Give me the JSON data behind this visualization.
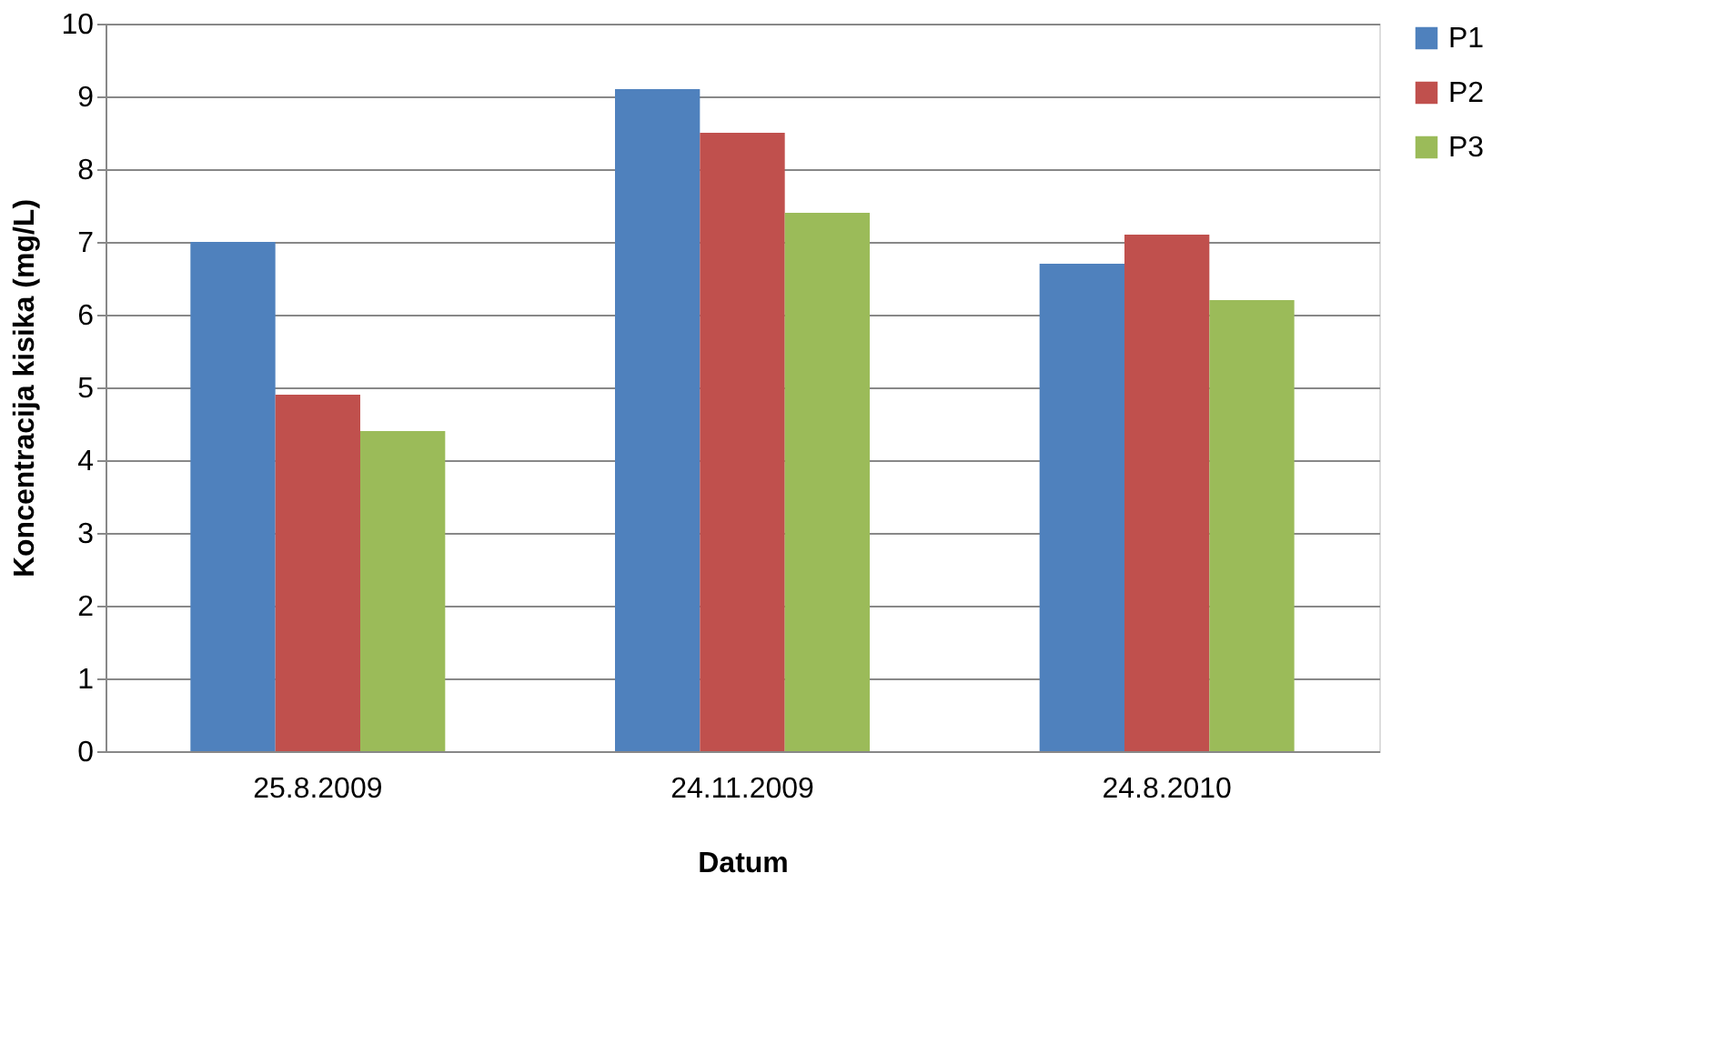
{
  "chart_data": {
    "type": "bar",
    "xlabel": "Datum",
    "ylabel": "Koncentracija kisika (mg/L)",
    "categories": [
      "25.8.2009",
      "24.11.2009",
      "24.8.2010"
    ],
    "series": [
      {
        "name": "P1",
        "color": "#4f81bd",
        "values": [
          7.0,
          9.1,
          6.7
        ]
      },
      {
        "name": "P2",
        "color": "#c0504d",
        "values": [
          4.9,
          8.5,
          7.1
        ]
      },
      {
        "name": "P3",
        "color": "#9bbb59",
        "values": [
          4.4,
          7.4,
          6.2
        ]
      }
    ],
    "ylim": [
      0,
      10
    ],
    "yticks": [
      0,
      1,
      2,
      3,
      4,
      5,
      6,
      7,
      8,
      9,
      10
    ],
    "grid": "y",
    "legend": "right"
  }
}
